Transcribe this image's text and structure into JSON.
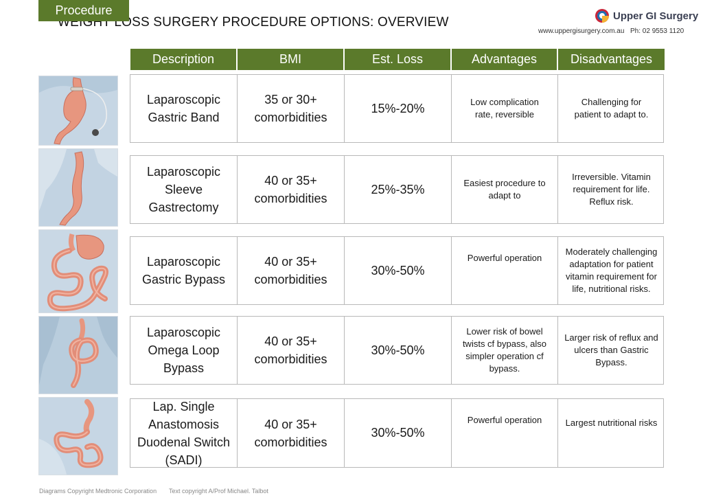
{
  "title": "WEIGHT LOSS SURGERY PROCEDURE OPTIONS: OVERVIEW",
  "brand": {
    "name": "Upper GI Surgery",
    "url": "www.uppergisurgery.com.au",
    "phone": "Ph: 02 9553 1120"
  },
  "columns": [
    "Procedure",
    "Description",
    "BMI",
    "Est. Loss",
    "Advantages",
    "Disadvantages"
  ],
  "rows": [
    {
      "description": "Laparoscopic\nGastric Band",
      "bmi": "35 or 30+\ncomorbidities",
      "loss": "15%-20%",
      "advantages": "Low complication\nrate, reversible",
      "disadvantages": "Challenging for\npatient to adapt to."
    },
    {
      "description": "Laparoscopic\nSleeve\nGastrectomy",
      "bmi": "40 or 35+\ncomorbidities",
      "loss": "25%-35%",
      "advantages": "Easiest procedure to\nadapt to",
      "disadvantages": "Irreversible. Vitamin\nrequirement for life.\nReflux risk."
    },
    {
      "description": "Laparoscopic\nGastric Bypass",
      "bmi": "40 or 35+\ncomorbidities",
      "loss": "30%-50%",
      "advantages": "Powerful operation",
      "disadvantages": "Moderately challenging\nadaptation for patient\nvitamin requirement for\nlife, nutritional risks."
    },
    {
      "description": "Laparoscopic\nOmega Loop\nBypass",
      "bmi": "40 or 35+\ncomorbidities",
      "loss": "30%-50%",
      "advantages": "Lower risk of bowel\ntwists cf bypass, also\nsimpler operation cf\nbypass.",
      "disadvantages": "Larger risk of reflux and\nulcers than Gastric\nBypass."
    },
    {
      "description": "Lap. Single\nAnastomosis\nDuodenal Switch\n(SADI)",
      "bmi": "40 or 35+\ncomorbidities",
      "loss": "30%-50%",
      "advantages": "Powerful operation",
      "disadvantages": "Largest nutritional risks"
    }
  ],
  "footer": {
    "diagrams": "Diagrams Copyright Medtronic Corporation",
    "text": "Text copyright A/Prof Michael. Talbot"
  },
  "colors": {
    "header_green": "#5b7a2b",
    "organ_pink": "#e7967f",
    "tissue_blue": "#a9c4d8"
  }
}
